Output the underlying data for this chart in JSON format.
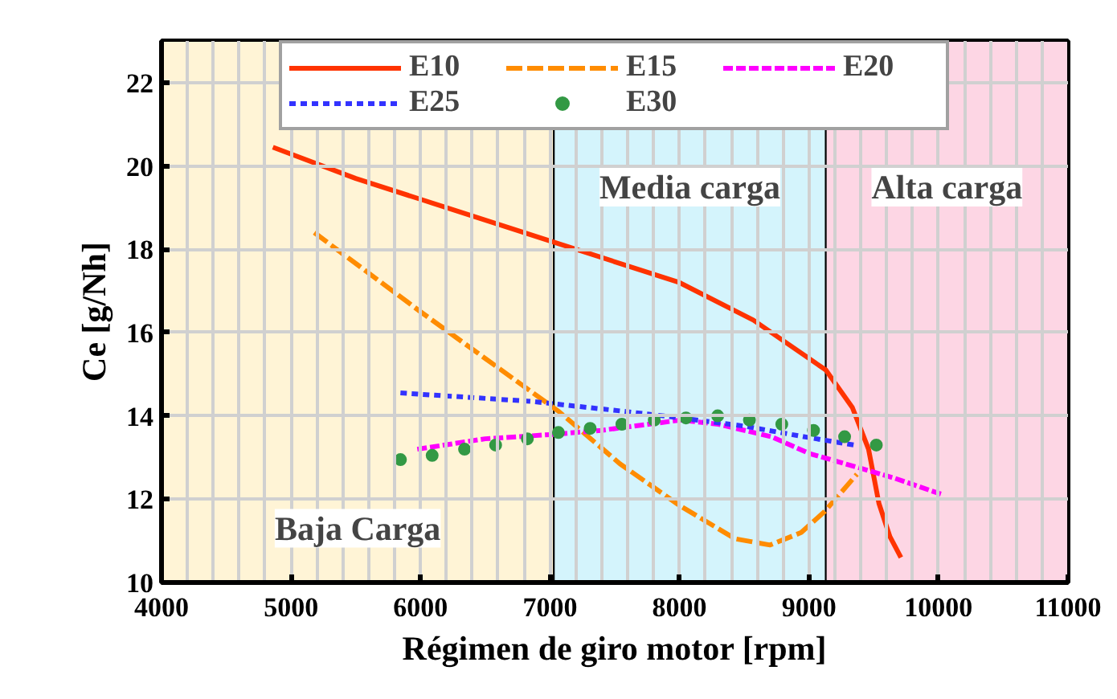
{
  "chart_data": {
    "type": "line",
    "xlabel": "Régimen de giro motor [rpm]",
    "ylabel": "Ce [g/Nh]",
    "xlim": [
      4000,
      11000
    ],
    "xticks": [
      4000,
      5000,
      6000,
      7000,
      8000,
      9000,
      10000,
      11000
    ],
    "ylim": [
      10,
      23
    ],
    "yticks": [
      10,
      12,
      14,
      16,
      18,
      20,
      22
    ],
    "grid": true,
    "legend": "top",
    "bands": [
      {
        "axis": "x",
        "from": 4000,
        "to": 7030,
        "label": "Baja Carga",
        "color": "#fff4d6"
      },
      {
        "axis": "x",
        "from": 7030,
        "to": 9130,
        "label": "Media carga",
        "color": "#d4f4fc"
      },
      {
        "axis": "x",
        "from": 9130,
        "to": 11000,
        "label": "Alta carga",
        "color": "#fdd6e4"
      }
    ],
    "series": [
      {
        "name": "E10",
        "color": "#ff3300",
        "line_style": "solid",
        "x": [
          4860,
          5500,
          6000,
          7000,
          7500,
          8000,
          8570,
          9130,
          9335,
          9460,
          9540,
          9625,
          9710
        ],
        "values": [
          20.45,
          19.7,
          19.2,
          18.2,
          17.7,
          17.2,
          16.3,
          15.1,
          14.2,
          13.2,
          11.9,
          11.1,
          10.6
        ]
      },
      {
        "name": "E15",
        "color": "#ff8c00",
        "line_style": "dashed",
        "x": [
          5180,
          6000,
          7070,
          7540,
          8000,
          8430,
          8700,
          8940,
          9120,
          9370
        ],
        "values": [
          18.4,
          16.5,
          14.1,
          12.85,
          11.85,
          11.05,
          10.9,
          11.2,
          11.7,
          12.6
        ]
      },
      {
        "name": "E20",
        "color": "#ff00ff",
        "line_style": "dashed",
        "x": [
          5975,
          6500,
          7000,
          7390,
          8010,
          8300,
          8710,
          9000,
          9335,
          9665,
          10040
        ],
        "values": [
          13.2,
          13.45,
          13.55,
          13.65,
          13.9,
          13.8,
          13.5,
          13.1,
          12.8,
          12.5,
          12.1
        ]
      },
      {
        "name": "E25",
        "color": "#3333ff",
        "line_style": "dotted",
        "x": [
          5845,
          6850,
          7600,
          8010,
          8510,
          8960,
          9350
        ],
        "values": [
          14.55,
          14.35,
          14.1,
          13.95,
          13.75,
          13.5,
          13.3
        ]
      },
      {
        "name": "E30",
        "color": "#339944",
        "type": "scatter",
        "marker": "circle",
        "x": [
          5845,
          6090,
          6340,
          6580,
          6825,
          7065,
          7310,
          7555,
          7805,
          8050,
          8295,
          8540,
          8790,
          9035,
          9275,
          9520
        ],
        "values": [
          12.95,
          13.05,
          13.2,
          13.3,
          13.45,
          13.6,
          13.7,
          13.8,
          13.9,
          13.95,
          14.0,
          13.9,
          13.8,
          13.65,
          13.5,
          13.3
        ]
      }
    ]
  }
}
